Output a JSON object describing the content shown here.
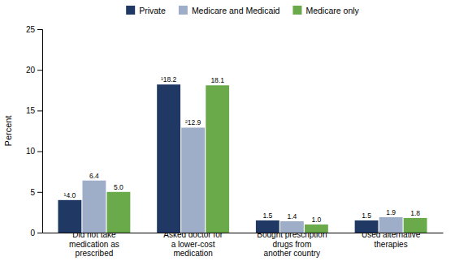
{
  "chart_data": {
    "type": "bar",
    "ylabel": "Percent",
    "categories": [
      "Did not take\nmedication as\nprescribed",
      "Asked doctor for\na lower-cost\nmedication",
      "Bought prescription\ndrugs from\nanother country",
      "Used alternative\ntherapies"
    ],
    "series": [
      {
        "name": "Private",
        "color": "#1f3864",
        "values": [
          4.0,
          18.2,
          1.5,
          1.5
        ],
        "value_labels": [
          "¹4.0",
          "¹18.2",
          "1.5",
          "1.5"
        ]
      },
      {
        "name": "Medicare and Medicaid",
        "color": "#9eadc8",
        "values": [
          6.4,
          12.9,
          1.4,
          1.9
        ],
        "value_labels": [
          "6.4",
          "²12.9",
          "1.4",
          "1.9"
        ]
      },
      {
        "name": "Medicare only",
        "color": "#6aaa4b",
        "values": [
          5.0,
          18.1,
          1.0,
          1.8
        ],
        "value_labels": [
          "5.0",
          "18.1",
          "1.0",
          "1.8"
        ]
      }
    ],
    "ylim": [
      0,
      25
    ],
    "yticks": [
      0,
      5,
      10,
      15,
      20,
      25
    ],
    "grid": false,
    "legend": "top",
    "data_labels": true
  }
}
